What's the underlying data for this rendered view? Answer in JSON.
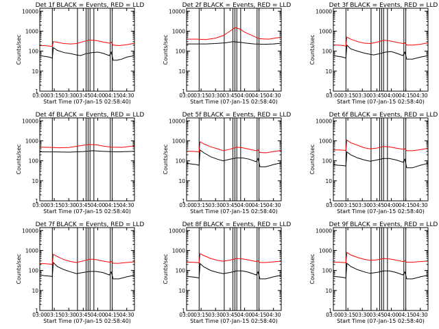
{
  "colors": {
    "events": "#000000",
    "lld": "#ff0000",
    "frame": "#000000",
    "background": "#ffffff"
  },
  "shared": {
    "xlabel": "Start Time (07-Jan-15 02:58:40)",
    "ylabel": "Counts/sec",
    "x_ticks": [
      "03:00",
      "03:15",
      "03:30",
      "03:45",
      "04:00",
      "04:15",
      "04:30"
    ],
    "y_ticks": [
      "1",
      "10",
      "100",
      "1000",
      "10000"
    ]
  },
  "chart_data": [
    {
      "type": "line",
      "title": "Det 1f BLACK = Events, RED = LLD",
      "xlim": [
        "03:00",
        "04:38"
      ],
      "ylim": [
        1,
        14000
      ],
      "yscale": "log",
      "vlines": [
        "03:13",
        "03:39",
        "03:48",
        "03:50",
        "03:52",
        "03:56",
        "04:13",
        "04:15"
      ],
      "series": [
        {
          "name": "BLACK = Events",
          "color": "#000000",
          "x": [
            "03:00",
            "03:05",
            "03:10",
            "03:13",
            "03:14",
            "03:18",
            "03:25",
            "03:32",
            "03:38",
            "03:42",
            "03:48",
            "03:54",
            "04:00",
            "04:05",
            "04:12",
            "04:14",
            "04:16",
            "04:20",
            "04:25",
            "04:30",
            "04:38"
          ],
          "y": [
            60,
            55,
            50,
            45,
            150,
            110,
            85,
            75,
            65,
            60,
            75,
            85,
            90,
            80,
            60,
            90,
            35,
            35,
            40,
            50,
            60
          ]
        },
        {
          "name": "RED = LLD",
          "color": "#ff0000",
          "x": [
            "03:00",
            "03:05",
            "03:10",
            "03:13",
            "03:14",
            "03:18",
            "03:25",
            "03:32",
            "03:38",
            "03:45",
            "03:52",
            "03:58",
            "04:05",
            "04:12",
            "04:14",
            "04:16",
            "04:22",
            "04:30",
            "04:38"
          ],
          "y": [
            190,
            190,
            180,
            175,
            300,
            280,
            240,
            230,
            240,
            300,
            360,
            340,
            290,
            250,
            280,
            200,
            190,
            210,
            250
          ]
        }
      ]
    },
    {
      "type": "line",
      "title": "Det 2f BLACK = Events, RED = LLD",
      "xlim": [
        "03:00",
        "04:38"
      ],
      "ylim": [
        1,
        14000
      ],
      "yscale": "log",
      "vlines": [
        "03:13",
        "03:39",
        "03:48",
        "03:50",
        "03:52",
        "03:56",
        "04:13",
        "04:15"
      ],
      "series": [
        {
          "name": "BLACK = Events",
          "color": "#000000",
          "x": [
            "03:00",
            "03:10",
            "03:20",
            "03:30",
            "03:40",
            "03:48",
            "03:55",
            "04:02",
            "04:10",
            "04:20",
            "04:30",
            "04:38"
          ],
          "y": [
            230,
            230,
            230,
            240,
            260,
            300,
            280,
            250,
            230,
            220,
            230,
            250
          ]
        },
        {
          "name": "RED = LLD",
          "color": "#ff0000",
          "x": [
            "03:00",
            "03:10",
            "03:20",
            "03:30",
            "03:38",
            "03:45",
            "03:50",
            "03:55",
            "04:00",
            "04:08",
            "04:15",
            "04:25",
            "04:38"
          ],
          "y": [
            400,
            400,
            380,
            450,
            600,
            1000,
            1500,
            1300,
            900,
            600,
            420,
            400,
            500
          ]
        }
      ]
    },
    {
      "type": "line",
      "title": "Det 3f BLACK = Events, RED = LLD",
      "xlim": [
        "03:00",
        "04:38"
      ],
      "ylim": [
        1,
        14000
      ],
      "yscale": "log",
      "vlines": [
        "03:13",
        "03:39",
        "03:48",
        "03:50",
        "03:52",
        "03:56",
        "04:13",
        "04:15"
      ],
      "series": [
        {
          "name": "BLACK = Events",
          "color": "#000000",
          "x": [
            "03:00",
            "03:05",
            "03:10",
            "03:13",
            "03:14",
            "03:18",
            "03:25",
            "03:32",
            "03:38",
            "03:42",
            "03:48",
            "03:54",
            "04:00",
            "04:05",
            "04:12",
            "04:14",
            "04:16",
            "04:22",
            "04:30",
            "04:38"
          ],
          "y": [
            60,
            55,
            50,
            45,
            200,
            130,
            100,
            80,
            70,
            65,
            75,
            90,
            95,
            80,
            60,
            90,
            40,
            40,
            50,
            60
          ]
        },
        {
          "name": "RED = LLD",
          "color": "#ff0000",
          "x": [
            "03:00",
            "03:05",
            "03:10",
            "03:13",
            "03:14",
            "03:18",
            "03:25",
            "03:32",
            "03:38",
            "03:45",
            "03:52",
            "03:58",
            "04:05",
            "04:12",
            "04:14",
            "04:16",
            "04:22",
            "04:30",
            "04:38"
          ],
          "y": [
            200,
            200,
            190,
            180,
            500,
            400,
            300,
            250,
            240,
            280,
            350,
            330,
            280,
            240,
            260,
            200,
            200,
            220,
            260
          ]
        }
      ]
    },
    {
      "type": "line",
      "title": "Det 4f BLACK = Events, RED = LLD",
      "xlim": [
        "03:00",
        "04:38"
      ],
      "ylim": [
        1,
        14000
      ],
      "yscale": "log",
      "vlines": [
        "03:13",
        "03:39",
        "03:48",
        "03:50",
        "03:52",
        "03:56",
        "04:13",
        "04:15"
      ],
      "series": [
        {
          "name": "BLACK = Events",
          "color": "#000000",
          "x": [
            "03:00",
            "03:15",
            "03:30",
            "03:45",
            "03:55",
            "04:05",
            "04:20",
            "04:38"
          ],
          "y": [
            280,
            280,
            270,
            290,
            320,
            300,
            280,
            300
          ]
        },
        {
          "name": "RED = LLD",
          "color": "#ff0000",
          "x": [
            "03:00",
            "03:10",
            "03:20",
            "03:30",
            "03:40",
            "03:50",
            "03:58",
            "04:05",
            "04:15",
            "04:25",
            "04:38"
          ],
          "y": [
            480,
            470,
            450,
            460,
            550,
            650,
            640,
            550,
            480,
            470,
            560
          ]
        }
      ]
    },
    {
      "type": "line",
      "title": "Det 5f BLACK = Events, RED = LLD",
      "xlim": [
        "03:00",
        "04:38"
      ],
      "ylim": [
        1,
        14000
      ],
      "yscale": "log",
      "vlines": [
        "03:13",
        "03:39",
        "03:48",
        "03:50",
        "03:52",
        "03:56",
        "04:13",
        "04:15"
      ],
      "series": [
        {
          "name": "BLACK = Events",
          "color": "#000000",
          "x": [
            "03:00",
            "03:05",
            "03:10",
            "03:13",
            "03:14",
            "03:18",
            "03:25",
            "03:32",
            "03:38",
            "03:45",
            "03:52",
            "03:58",
            "04:05",
            "04:12",
            "04:14",
            "04:16",
            "04:22",
            "04:30",
            "04:38"
          ],
          "y": [
            75,
            70,
            65,
            60,
            350,
            250,
            160,
            120,
            100,
            120,
            140,
            140,
            120,
            90,
            130,
            50,
            50,
            65,
            80
          ]
        },
        {
          "name": "RED = LLD",
          "color": "#ff0000",
          "x": [
            "03:00",
            "03:05",
            "03:10",
            "03:13",
            "03:14",
            "03:18",
            "03:25",
            "03:32",
            "03:38",
            "03:45",
            "03:52",
            "03:58",
            "04:05",
            "04:12",
            "04:14",
            "04:16",
            "04:22",
            "04:30",
            "04:38"
          ],
          "y": [
            300,
            300,
            290,
            280,
            900,
            700,
            500,
            400,
            320,
            380,
            480,
            450,
            380,
            320,
            350,
            260,
            250,
            290,
            330
          ]
        }
      ]
    },
    {
      "type": "line",
      "title": "Det 6f BLACK = Events, RED = LLD",
      "xlim": [
        "03:00",
        "04:38"
      ],
      "ylim": [
        1,
        14000
      ],
      "yscale": "log",
      "vlines": [
        "03:13",
        "03:39",
        "03:48",
        "03:50",
        "03:52",
        "03:56",
        "04:13",
        "04:15"
      ],
      "series": [
        {
          "name": "BLACK = Events",
          "color": "#000000",
          "x": [
            "03:00",
            "03:05",
            "03:10",
            "03:13",
            "03:14",
            "03:18",
            "03:25",
            "03:32",
            "03:38",
            "03:45",
            "03:52",
            "03:58",
            "04:05",
            "04:12",
            "04:14",
            "04:16",
            "04:22",
            "04:30",
            "04:38"
          ],
          "y": [
            65,
            60,
            58,
            55,
            280,
            200,
            140,
            110,
            95,
            110,
            130,
            130,
            110,
            85,
            120,
            45,
            45,
            60,
            75
          ]
        },
        {
          "name": "RED = LLD",
          "color": "#ff0000",
          "x": [
            "03:00",
            "03:05",
            "03:10",
            "03:13",
            "03:14",
            "03:18",
            "03:25",
            "03:32",
            "03:38",
            "03:45",
            "03:52",
            "03:58",
            "04:05",
            "04:12",
            "04:14",
            "04:16",
            "04:22",
            "04:30",
            "04:38"
          ],
          "y": [
            350,
            350,
            340,
            330,
            1100,
            800,
            600,
            450,
            400,
            430,
            520,
            500,
            430,
            380,
            400,
            320,
            320,
            360,
            420
          ]
        }
      ]
    },
    {
      "type": "line",
      "title": "Det 7f BLACK = Events, RED = LLD",
      "xlim": [
        "03:00",
        "04:38"
      ],
      "ylim": [
        1,
        14000
      ],
      "yscale": "log",
      "vlines": [
        "03:13",
        "03:39",
        "03:48",
        "03:50",
        "03:52",
        "03:56",
        "04:13",
        "04:15"
      ],
      "series": [
        {
          "name": "BLACK = Events",
          "color": "#000000",
          "x": [
            "03:00",
            "03:05",
            "03:10",
            "03:13",
            "03:14",
            "03:18",
            "03:25",
            "03:32",
            "03:38",
            "03:45",
            "03:52",
            "03:58",
            "04:05",
            "04:12",
            "04:14",
            "04:16",
            "04:22",
            "04:30",
            "04:38"
          ],
          "y": [
            60,
            55,
            52,
            50,
            250,
            160,
            110,
            85,
            70,
            80,
            90,
            90,
            80,
            60,
            85,
            38,
            38,
            48,
            58
          ]
        },
        {
          "name": "RED = LLD",
          "color": "#ff0000",
          "x": [
            "03:00",
            "03:05",
            "03:10",
            "03:13",
            "03:14",
            "03:18",
            "03:25",
            "03:32",
            "03:38",
            "03:45",
            "03:52",
            "03:58",
            "04:05",
            "04:12",
            "04:14",
            "04:16",
            "04:22",
            "04:30",
            "04:38"
          ],
          "y": [
            220,
            220,
            210,
            200,
            650,
            500,
            350,
            280,
            250,
            300,
            370,
            350,
            300,
            260,
            280,
            230,
            230,
            250,
            270
          ]
        }
      ]
    },
    {
      "type": "line",
      "title": "Det 8f BLACK = Events, RED = LLD",
      "xlim": [
        "03:00",
        "04:38"
      ],
      "ylim": [
        1,
        14000
      ],
      "yscale": "log",
      "vlines": [
        "03:13",
        "03:39",
        "03:48",
        "03:50",
        "03:52",
        "03:56",
        "04:13",
        "04:15"
      ],
      "series": [
        {
          "name": "BLACK = Events",
          "color": "#000000",
          "x": [
            "03:00",
            "03:05",
            "03:10",
            "03:13",
            "03:14",
            "03:18",
            "03:25",
            "03:32",
            "03:38",
            "03:45",
            "03:52",
            "03:58",
            "04:05",
            "04:12",
            "04:14",
            "04:16",
            "04:22",
            "04:30",
            "04:38"
          ],
          "y": [
            50,
            48,
            45,
            42,
            220,
            150,
            100,
            80,
            70,
            80,
            95,
            95,
            80,
            60,
            85,
            38,
            38,
            48,
            58
          ]
        },
        {
          "name": "RED = LLD",
          "color": "#ff0000",
          "x": [
            "03:00",
            "03:05",
            "03:10",
            "03:13",
            "03:14",
            "03:18",
            "03:25",
            "03:32",
            "03:38",
            "03:45",
            "03:52",
            "03:58",
            "04:05",
            "04:12",
            "04:14",
            "04:16",
            "04:22",
            "04:30",
            "04:38"
          ],
          "y": [
            260,
            260,
            250,
            240,
            700,
            550,
            400,
            320,
            290,
            330,
            400,
            380,
            330,
            280,
            300,
            250,
            250,
            270,
            290
          ]
        }
      ]
    },
    {
      "type": "line",
      "title": "Det 9f BLACK = Events, RED = LLD",
      "xlim": [
        "03:00",
        "04:38"
      ],
      "ylim": [
        1,
        14000
      ],
      "yscale": "log",
      "vlines": [
        "03:13",
        "03:39",
        "03:48",
        "03:50",
        "03:52",
        "03:56",
        "04:13",
        "04:15"
      ],
      "series": [
        {
          "name": "BLACK = Events",
          "color": "#000000",
          "x": [
            "03:00",
            "03:05",
            "03:10",
            "03:13",
            "03:14",
            "03:18",
            "03:25",
            "03:32",
            "03:38",
            "03:45",
            "03:52",
            "03:58",
            "04:05",
            "04:12",
            "04:14",
            "04:16",
            "04:22",
            "04:30",
            "04:38"
          ],
          "y": [
            50,
            48,
            45,
            42,
            230,
            160,
            110,
            85,
            72,
            80,
            95,
            95,
            80,
            60,
            85,
            38,
            38,
            48,
            58
          ]
        },
        {
          "name": "RED = LLD",
          "color": "#ff0000",
          "x": [
            "03:00",
            "03:05",
            "03:10",
            "03:13",
            "03:14",
            "03:18",
            "03:25",
            "03:32",
            "03:38",
            "03:45",
            "03:52",
            "03:58",
            "04:05",
            "04:12",
            "04:14",
            "04:16",
            "04:22",
            "04:30",
            "04:38"
          ],
          "y": [
            260,
            260,
            250,
            240,
            800,
            600,
            450,
            360,
            320,
            340,
            400,
            380,
            330,
            280,
            300,
            260,
            260,
            280,
            300
          ]
        }
      ]
    }
  ]
}
